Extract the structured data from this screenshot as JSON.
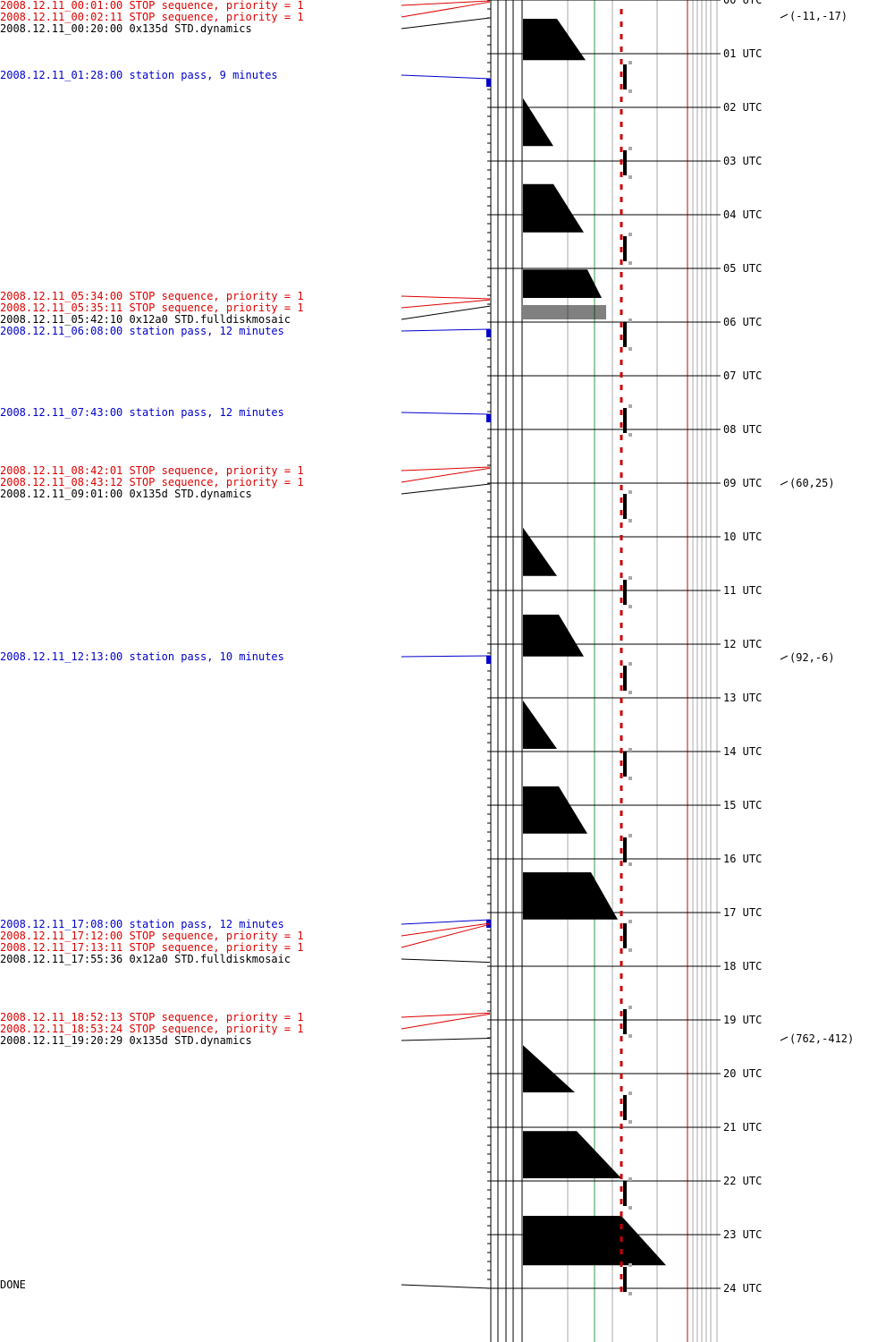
{
  "colors": {
    "stop": "#dd0000",
    "pass": "#0000cc",
    "cmd": "#000000",
    "grid": "#000000",
    "green": "#339944",
    "red": "#cc0000",
    "gray": "#aaaaaa"
  },
  "events": [
    {
      "text": "2008.12.11_00:01:00 STOP sequence, priority = 1",
      "kind": "stop",
      "hour": 0.0167
    },
    {
      "text": "2008.12.11_00:02:11 STOP sequence, priority = 1",
      "kind": "stop",
      "hour": 0.0364
    },
    {
      "text": "2008.12.11_00:20:00 0x135d STD.dynamics",
      "kind": "cmd",
      "hour": 0.3333
    },
    {
      "text": "2008.12.11_01:28:00 station pass, 9 minutes",
      "kind": "pass",
      "hour": 1.4667
    },
    {
      "text": "2008.12.11_05:34:00 STOP sequence, priority = 1",
      "kind": "stop",
      "hour": 5.5667
    },
    {
      "text": "2008.12.11_05:35:11 STOP sequence, priority = 1",
      "kind": "stop",
      "hour": 5.5864
    },
    {
      "text": "2008.12.11_05:42:10 0x12a0 STD.fulldiskmosaic",
      "kind": "cmd",
      "hour": 5.7028
    },
    {
      "text": "2008.12.11_06:08:00 station pass, 12 minutes",
      "kind": "pass",
      "hour": 6.1333
    },
    {
      "text": "2008.12.11_07:43:00 station pass, 12 minutes",
      "kind": "pass",
      "hour": 7.7167
    },
    {
      "text": "2008.12.11_08:42:01 STOP sequence, priority = 1",
      "kind": "stop",
      "hour": 8.7003
    },
    {
      "text": "2008.12.11_08:43:12 STOP sequence, priority = 1",
      "kind": "stop",
      "hour": 8.72
    },
    {
      "text": "2008.12.11_09:01:00 0x135d STD.dynamics",
      "kind": "cmd",
      "hour": 9.0167
    },
    {
      "text": "2008.12.11_12:13:00 station pass, 10 minutes",
      "kind": "pass",
      "hour": 12.2167
    },
    {
      "text": "2008.12.11_17:08:00 station pass, 12 minutes",
      "kind": "pass",
      "hour": 17.1333
    },
    {
      "text": "2008.12.11_17:12:00 STOP sequence, priority = 1",
      "kind": "stop",
      "hour": 17.2
    },
    {
      "text": "2008.12.11_17:13:11 STOP sequence, priority = 1",
      "kind": "stop",
      "hour": 17.2197
    },
    {
      "text": "2008.12.11_17:55:36 0x12a0 STD.fulldiskmosaic",
      "kind": "cmd",
      "hour": 17.9267
    },
    {
      "text": "2008.12.11_18:52:13 STOP sequence, priority = 1",
      "kind": "stop",
      "hour": 18.8703
    },
    {
      "text": "2008.12.11_18:53:24 STOP sequence, priority = 1",
      "kind": "stop",
      "hour": 18.89
    },
    {
      "text": "2008.12.11_19:20:29 0x135d STD.dynamics",
      "kind": "cmd",
      "hour": 19.3414
    },
    {
      "text": "DONE",
      "kind": "cmd",
      "hour": 24.0
    }
  ],
  "hour_labels": [
    "00 UTC",
    "01 UTC",
    "02 UTC",
    "03 UTC",
    "04 UTC",
    "05 UTC",
    "06 UTC",
    "07 UTC",
    "08 UTC",
    "09 UTC",
    "10 UTC",
    "11 UTC",
    "12 UTC",
    "13 UTC",
    "14 UTC",
    "15 UTC",
    "16 UTC",
    "17 UTC",
    "18 UTC",
    "19 UTC",
    "20 UTC",
    "21 UTC",
    "22 UTC",
    "23 UTC",
    "24 UTC"
  ],
  "annotations": [
    {
      "text": "(-11,-17)",
      "hour": 0.3
    },
    {
      "text": "(60,25)",
      "hour": 9.0
    },
    {
      "text": "(92,-6)",
      "hour": 12.25
    },
    {
      "text": "(762,-412)",
      "hour": 19.35
    }
  ],
  "blocks": [
    {
      "start": 0.35,
      "end": 1.12,
      "w0": 38,
      "w1": 70
    },
    {
      "start": 1.83,
      "end": 2.72,
      "w0": 0,
      "w1": 34
    },
    {
      "start": 3.43,
      "end": 4.33,
      "w0": 34,
      "w1": 68
    },
    {
      "start": 5.02,
      "end": 5.55,
      "w0": 72,
      "w1": 88
    },
    {
      "start": 9.83,
      "end": 10.73,
      "w0": 0,
      "w1": 38
    },
    {
      "start": 11.45,
      "end": 12.23,
      "w0": 40,
      "w1": 68
    },
    {
      "start": 13.05,
      "end": 13.95,
      "w0": 0,
      "w1": 38
    },
    {
      "start": 14.65,
      "end": 15.53,
      "w0": 40,
      "w1": 72
    },
    {
      "start": 16.25,
      "end": 17.13,
      "w0": 76,
      "w1": 106
    },
    {
      "start": 19.47,
      "end": 20.35,
      "w0": 0,
      "w1": 58
    },
    {
      "start": 21.07,
      "end": 21.95,
      "w0": 60,
      "w1": 110
    },
    {
      "start": 22.65,
      "end": 23.57,
      "w0": 110,
      "w1": 160
    }
  ]
}
